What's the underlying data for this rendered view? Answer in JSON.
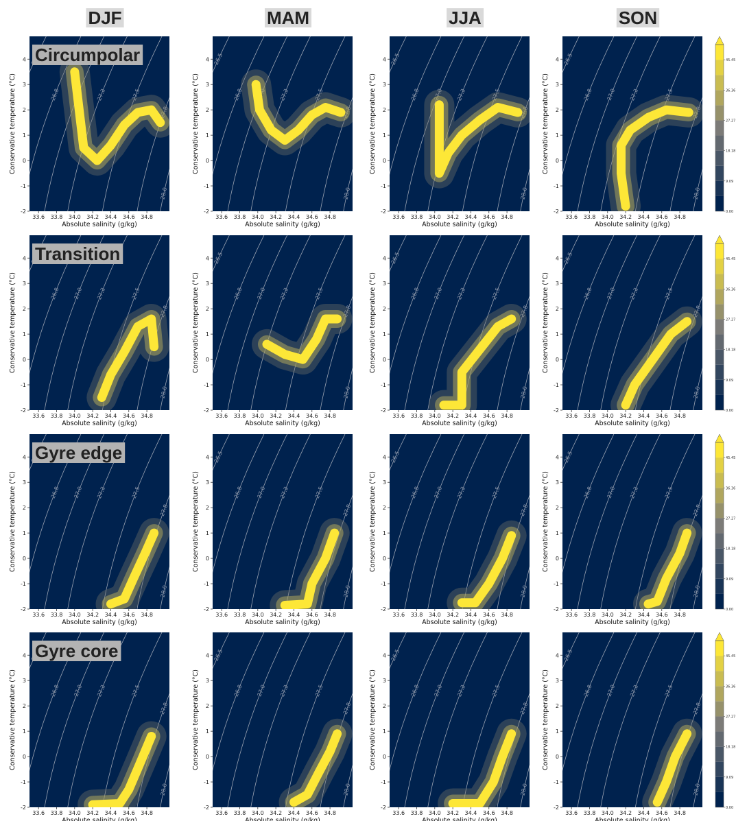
{
  "columns": [
    "DJF",
    "MAM",
    "JJA",
    "SON"
  ],
  "rows": [
    "Circumpolar",
    "Transition",
    "Gyre edge",
    "Gyre core"
  ],
  "axes": {
    "xlabel": "Absolute salinity  (g/kg)",
    "ylabel": "Conservative temperature (°C)",
    "xlim": [
      33.5,
      35.05
    ],
    "ylim": [
      -2,
      4.9
    ],
    "xticks": [
      33.6,
      33.8,
      {
        "value": 34,
        "label": "34.0"
      },
      34.2,
      34.4,
      34.6,
      34.8
    ],
    "yticks": [
      -2,
      -1,
      0,
      1,
      2,
      3,
      4
    ],
    "background": "#00224e",
    "contour_levels": [
      26.5,
      26.8,
      {
        "value": 27,
        "label": "27.0"
      },
      27.2,
      27.5,
      27.8,
      {
        "value": 28,
        "label": "28.0"
      }
    ]
  },
  "colorbar": {
    "ylim": [
      0,
      50
    ],
    "yticks": [
      {
        "value": 0,
        "label": "0.00"
      },
      9.09,
      18.18,
      27.27,
      36.36,
      45.45
    ]
  },
  "chart_data": [
    {
      "type": "hist2d",
      "color": "#fde737",
      "x": [
        34.0,
        34.05,
        34.1,
        34.25,
        34.4,
        34.55,
        34.7,
        34.85,
        34.95
      ],
      "y": [
        3.5,
        2.0,
        0.5,
        0.0,
        0.6,
        1.4,
        1.9,
        2.0,
        1.5
      ]
    },
    {
      "type": "hist2d",
      "color": "#fde737",
      "x": [
        33.98,
        34.02,
        34.15,
        34.3,
        34.45,
        34.6,
        34.75,
        34.92
      ],
      "y": [
        3.0,
        2.0,
        1.2,
        0.8,
        1.2,
        1.8,
        2.1,
        1.9
      ]
    },
    {
      "type": "hist2d",
      "color": "#fde737",
      "x": [
        34.05,
        34.05,
        34.05,
        34.15,
        34.3,
        34.5,
        34.7,
        34.92
      ],
      "y": [
        2.2,
        1.0,
        -0.5,
        0.3,
        1.0,
        1.6,
        2.1,
        1.9
      ]
    },
    {
      "type": "hist2d",
      "color": "#fde737",
      "x": [
        34.2,
        34.15,
        34.15,
        34.25,
        34.45,
        34.65,
        34.9
      ],
      "y": [
        -1.8,
        -0.5,
        0.6,
        1.2,
        1.7,
        2.0,
        1.9
      ]
    },
    {
      "type": "hist2d",
      "color": "#fde737",
      "x": [
        34.3,
        34.4,
        34.55,
        34.7,
        34.85,
        34.88
      ],
      "y": [
        -1.5,
        -0.6,
        0.3,
        1.3,
        1.6,
        0.5
      ]
    },
    {
      "type": "hist2d",
      "color": "#fde737",
      "x": [
        34.1,
        34.3,
        34.5,
        34.65,
        34.75,
        34.88
      ],
      "y": [
        0.6,
        0.2,
        0.0,
        0.8,
        1.6,
        1.6
      ]
    },
    {
      "type": "hist2d",
      "color": "#fde737",
      "x": [
        34.1,
        34.3,
        34.3,
        34.5,
        34.7,
        34.85
      ],
      "y": [
        -1.8,
        -1.8,
        -0.5,
        0.4,
        1.3,
        1.6
      ]
    },
    {
      "type": "hist2d",
      "color": "#fde737",
      "x": [
        34.2,
        34.3,
        34.5,
        34.7,
        34.88
      ],
      "y": [
        -1.8,
        -1.0,
        0.0,
        1.0,
        1.5
      ]
    },
    {
      "type": "hist2d",
      "color": "#fde737",
      "x": [
        34.4,
        34.55,
        34.65,
        34.78,
        34.88
      ],
      "y": [
        -1.8,
        -1.6,
        -0.8,
        0.2,
        1.0
      ]
    },
    {
      "type": "hist2d",
      "color": "#fde737",
      "x": [
        34.3,
        34.55,
        34.6,
        34.75,
        34.85
      ],
      "y": [
        -1.85,
        -1.8,
        -1.0,
        0.0,
        1.0
      ]
    },
    {
      "type": "hist2d",
      "color": "#fde737",
      "x": [
        34.3,
        34.45,
        34.6,
        34.75,
        34.85
      ],
      "y": [
        -1.75,
        -1.75,
        -1.0,
        0.0,
        0.9
      ]
    },
    {
      "type": "hist2d",
      "color": "#fde737",
      "x": [
        34.45,
        34.55,
        34.65,
        34.8,
        34.88
      ],
      "y": [
        -1.8,
        -1.7,
        -0.8,
        0.2,
        1.0
      ]
    },
    {
      "type": "hist2d",
      "color": "#fde737",
      "x": [
        34.2,
        34.5,
        34.6,
        34.72,
        34.85
      ],
      "y": [
        -1.9,
        -1.85,
        -1.3,
        -0.3,
        0.8
      ]
    },
    {
      "type": "hist2d",
      "color": "#fde737",
      "x": [
        34.4,
        34.55,
        34.68,
        34.8,
        34.88
      ],
      "y": [
        -1.8,
        -1.5,
        -0.6,
        0.2,
        0.9
      ]
    },
    {
      "type": "hist2d",
      "color": "#fde737",
      "x": [
        34.2,
        34.5,
        34.65,
        34.75,
        34.85
      ],
      "y": [
        -1.85,
        -1.85,
        -1.0,
        0.0,
        0.9
      ]
    },
    {
      "type": "hist2d",
      "color": "#fde737",
      "x": [
        34.55,
        34.65,
        34.75,
        34.88
      ],
      "y": [
        -1.8,
        -1.0,
        0.0,
        0.9
      ]
    }
  ]
}
